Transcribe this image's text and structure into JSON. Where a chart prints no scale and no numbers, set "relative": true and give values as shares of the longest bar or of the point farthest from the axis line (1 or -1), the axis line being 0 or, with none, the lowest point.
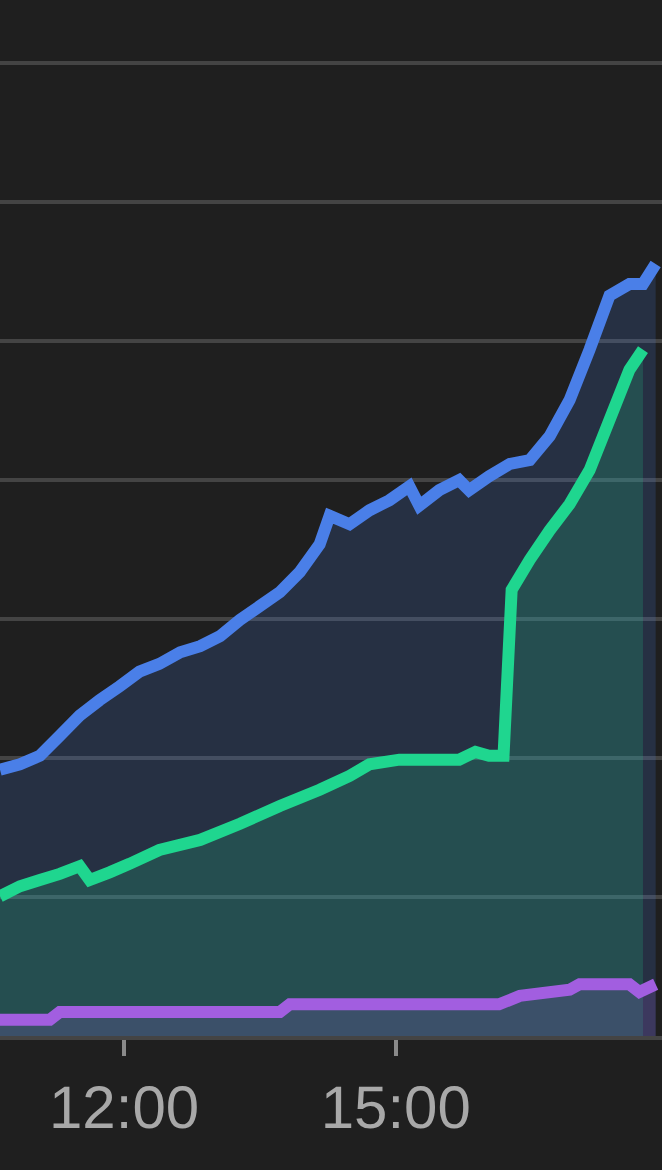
{
  "chart_data": {
    "type": "area",
    "relative": true,
    "grid": "y",
    "legend": false,
    "marker": "none",
    "line_style": "solid",
    "xlim": [
      10.63,
      17.94
    ],
    "xticks": [
      {
        "value": 12,
        "label": "12:00"
      },
      {
        "value": 15,
        "label": "15:00"
      }
    ],
    "series": [
      {
        "color": "#4a7fe8",
        "x": [
          10.63,
          10.85,
          11.07,
          11.29,
          11.51,
          11.73,
          11.95,
          12.17,
          12.39,
          12.62,
          12.84,
          13.06,
          13.28,
          13.5,
          13.72,
          13.94,
          14.16,
          14.27,
          14.49,
          14.71,
          14.93,
          15.15,
          15.26,
          15.48,
          15.7,
          15.81,
          16.03,
          16.26,
          16.48,
          16.7,
          16.92,
          17.14,
          17.36,
          17.58,
          17.73,
          17.87
        ],
        "values": [
          0.345,
          0.352,
          0.363,
          0.389,
          0.415,
          0.435,
          0.453,
          0.472,
          0.482,
          0.497,
          0.505,
          0.518,
          0.539,
          0.557,
          0.575,
          0.601,
          0.637,
          0.674,
          0.663,
          0.681,
          0.694,
          0.712,
          0.687,
          0.707,
          0.72,
          0.707,
          0.725,
          0.741,
          0.746,
          0.777,
          0.824,
          0.889,
          0.959,
          0.974,
          0.974,
          1
        ]
      },
      {
        "color": "#1fd68f",
        "x": [
          10.63,
          10.85,
          11.07,
          11.29,
          11.51,
          11.62,
          11.84,
          12.06,
          12.39,
          12.84,
          13.28,
          13.72,
          14.16,
          14.49,
          14.71,
          15.04,
          15.7,
          15.88,
          16.03,
          16.19,
          16.28,
          16.48,
          16.7,
          16.92,
          17.14,
          17.36,
          17.58,
          17.73
        ],
        "values": [
          0.181,
          0.194,
          0.202,
          0.21,
          0.22,
          0.202,
          0.212,
          0.223,
          0.241,
          0.254,
          0.275,
          0.298,
          0.319,
          0.337,
          0.352,
          0.358,
          0.358,
          0.368,
          0.363,
          0.363,
          0.578,
          0.617,
          0.655,
          0.689,
          0.733,
          0.798,
          0.863,
          0.889
        ]
      },
      {
        "color": "#a25ee0",
        "x": [
          10.63,
          11.18,
          11.29,
          13.72,
          13.83,
          16.14,
          16.37,
          16.92,
          17.03,
          17.58,
          17.69,
          17.87
        ],
        "values": [
          0.021,
          0.021,
          0.031,
          0.031,
          0.041,
          0.041,
          0.052,
          0.06,
          0.067,
          0.067,
          0.057,
          0.067
        ]
      }
    ]
  }
}
